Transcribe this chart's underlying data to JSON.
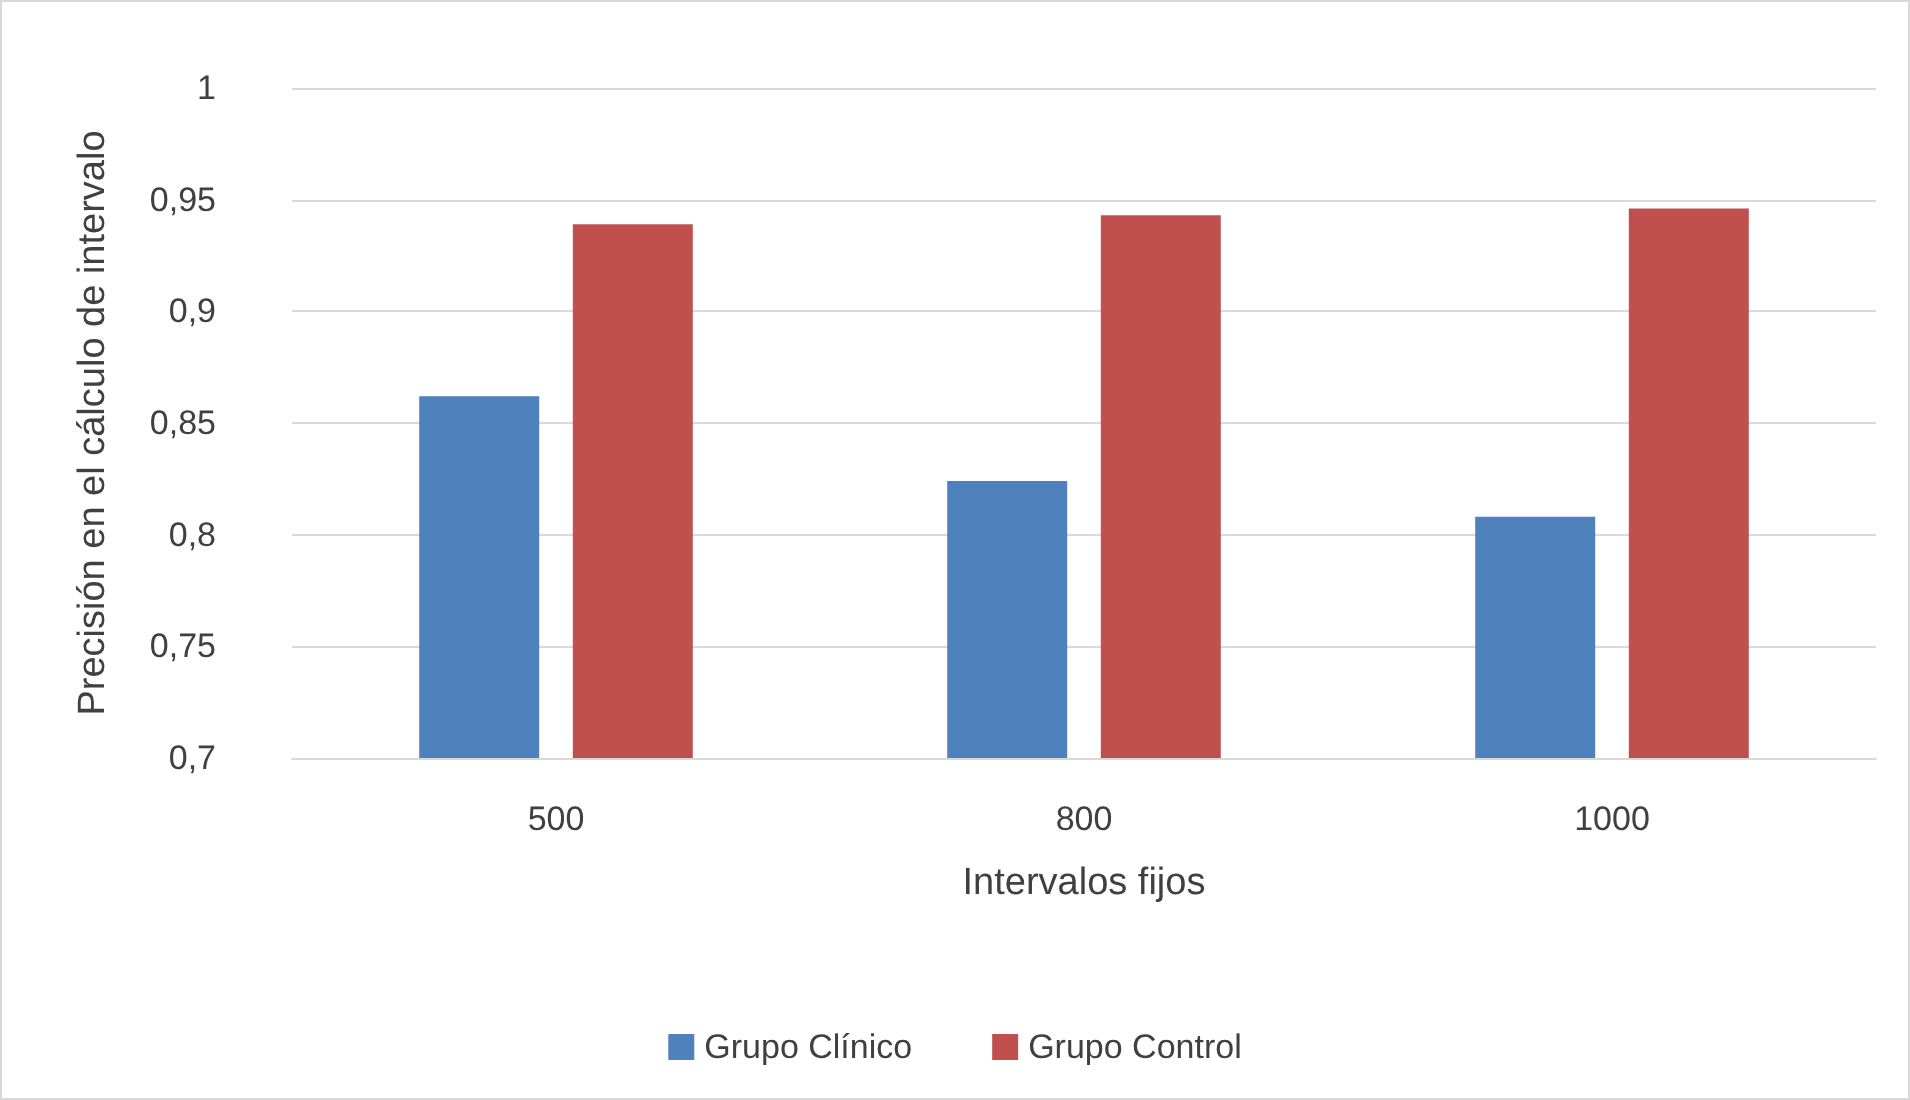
{
  "chart_data": {
    "type": "bar",
    "xlabel": "Intervalos fijos",
    "ylabel": "Precisión en el cálculo de intervalo",
    "categories": [
      "500",
      "800",
      "1000"
    ],
    "series": [
      {
        "name": "Grupo Clínico",
        "color": "#4f81bd",
        "values": [
          0.862,
          0.824,
          0.808
        ]
      },
      {
        "name": "Grupo Control",
        "color": "#c0504d",
        "values": [
          0.939,
          0.943,
          0.946
        ]
      }
    ],
    "ylim": [
      0.7,
      1
    ],
    "yticks": [
      {
        "value": 0.7,
        "label": "0,7"
      },
      {
        "value": 0.75,
        "label": "0,75"
      },
      {
        "value": 0.8,
        "label": "0,8"
      },
      {
        "value": 0.85,
        "label": "0,85"
      },
      {
        "value": 0.9,
        "label": "0,9"
      },
      {
        "value": 0.95,
        "label": "0,95"
      },
      {
        "value": 1,
        "label": "1"
      }
    ],
    "grid": "y",
    "legend": "bottom"
  }
}
